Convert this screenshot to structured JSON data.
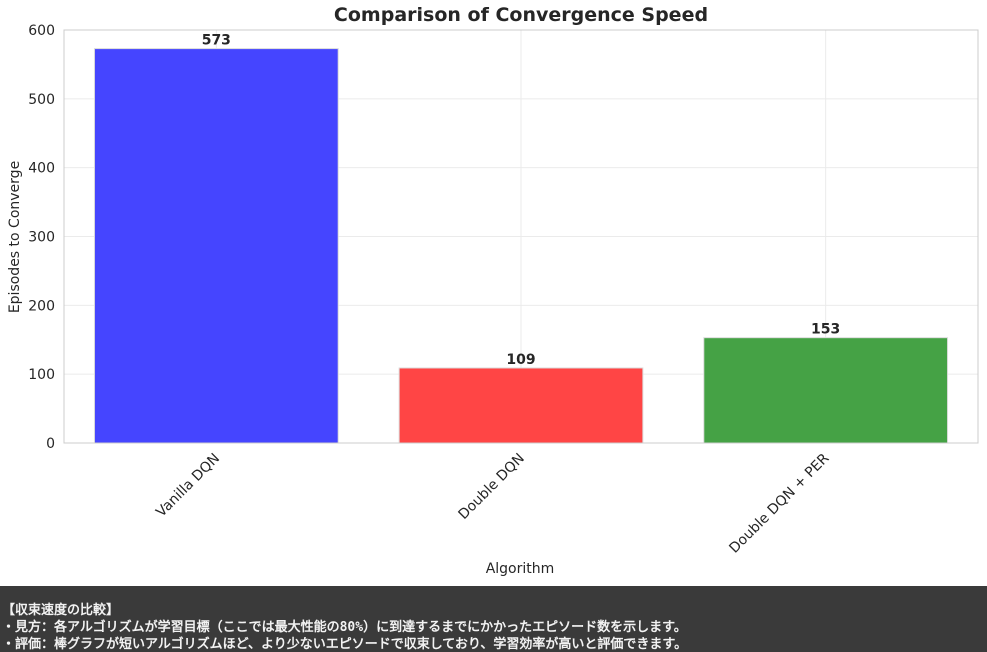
{
  "chart_data": {
    "type": "bar",
    "title": "Comparison of Convergence Speed",
    "xlabel": "Algorithm",
    "ylabel": "Episodes to Converge",
    "categories": [
      "Vanilla DQN",
      "Double DQN",
      "Double DQN + PER"
    ],
    "values": [
      573,
      109,
      153
    ],
    "data_labels": [
      "573",
      "109",
      "153"
    ],
    "colors": [
      "#4545ff",
      "#ff4545",
      "#45a245"
    ],
    "ylim": [
      0,
      600
    ],
    "yticks": [
      0,
      100,
      200,
      300,
      400,
      500,
      600
    ],
    "grid": true,
    "legend": "none"
  },
  "caption": {
    "heading": "【収束速度の比較】",
    "line1": "・見方：各アルゴリズムが学習目標（ここでは最大性能の80%）に到達するまでにかかったエピソード数を示します。",
    "line2": "・評価：棒グラフが短いアルゴリズムほど、より少ないエピソードで収束しており、学習効率が高いと評価できます。"
  }
}
